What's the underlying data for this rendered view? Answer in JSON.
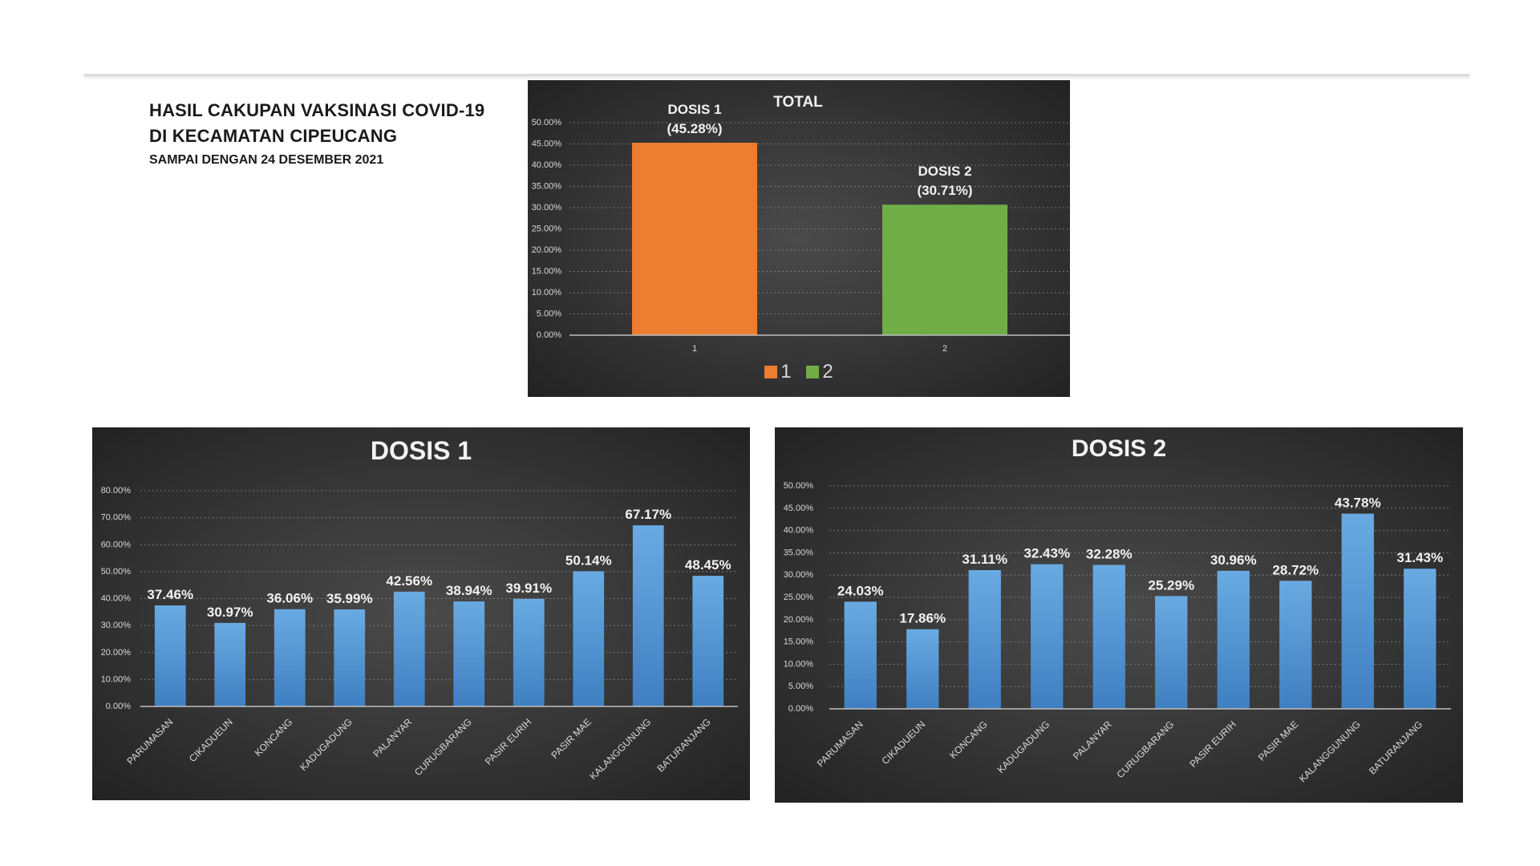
{
  "header": {
    "line1": "HASIL CAKUPAN VAKSINASI COVID-19",
    "line2": "DI KECAMATAN CIPEUCANG",
    "line3": "SAMPAI DENGAN 24 DESEMBER 2021"
  },
  "colors": {
    "orange": "#ED7D31",
    "green": "#70AD47",
    "blue": "#5B9BD5"
  },
  "chart_data": [
    {
      "id": "total",
      "type": "bar",
      "title": "TOTAL",
      "categories": [
        "1",
        "2"
      ],
      "values": [
        45.28,
        30.71
      ],
      "value_labels": [
        [
          "DOSIS 1",
          "(45.28%)"
        ],
        [
          "DOSIS 2",
          "(30.71%)"
        ]
      ],
      "bar_colors": [
        "#ED7D31",
        "#70AD47"
      ],
      "ylim": [
        0,
        50
      ],
      "yticks": [
        "0.00%",
        "5.00%",
        "10.00%",
        "15.00%",
        "20.00%",
        "25.00%",
        "30.00%",
        "35.00%",
        "40.00%",
        "45.00%",
        "50.00%"
      ],
      "legend": [
        {
          "label": "1",
          "color": "#ED7D31"
        },
        {
          "label": "2",
          "color": "#70AD47"
        }
      ],
      "xlabel": "",
      "ylabel": ""
    },
    {
      "id": "dosis1",
      "type": "bar",
      "title": "DOSIS 1",
      "categories": [
        "PARUMASAN",
        "CIKADUEUN",
        "KONCANG",
        "KADUGADUNG",
        "PALANYAR",
        "CURUGBARANG",
        "PASIR EURIH",
        "PASIR MAE",
        "KALANGGUNUNG",
        "BATURANJANG"
      ],
      "values": [
        37.46,
        30.97,
        36.06,
        35.99,
        42.56,
        38.94,
        39.91,
        50.14,
        67.17,
        48.45
      ],
      "value_labels": [
        "37.46%",
        "30.97%",
        "36.06%",
        "35.99%",
        "42.56%",
        "38.94%",
        "39.91%",
        "50.14%",
        "67.17%",
        "48.45%"
      ],
      "ylim": [
        0,
        80
      ],
      "yticks": [
        "0.00%",
        "10.00%",
        "20.00%",
        "30.00%",
        "40.00%",
        "50.00%",
        "60.00%",
        "70.00%",
        "80.00%"
      ],
      "xlabel": "",
      "ylabel": ""
    },
    {
      "id": "dosis2",
      "type": "bar",
      "title": "DOSIS 2",
      "categories": [
        "PARUMASAN",
        "CIKADUEUN",
        "KONCANG",
        "KADUGADUNG",
        "PALANYAR",
        "CURUGBARANG",
        "PASIR EURIH",
        "PASIR MAE",
        "KALANGGUNUNG",
        "BATURANJANG"
      ],
      "values": [
        24.03,
        17.86,
        31.11,
        32.43,
        32.28,
        25.29,
        30.96,
        28.72,
        43.78,
        31.43
      ],
      "value_labels": [
        "24.03%",
        "17.86%",
        "31.11%",
        "32.43%",
        "32.28%",
        "25.29%",
        "30.96%",
        "28.72%",
        "43.78%",
        "31.43%"
      ],
      "ylim": [
        0,
        50
      ],
      "yticks": [
        "0.00%",
        "5.00%",
        "10.00%",
        "15.00%",
        "20.00%",
        "25.00%",
        "30.00%",
        "35.00%",
        "40.00%",
        "45.00%",
        "50.00%"
      ],
      "xlabel": "",
      "ylabel": ""
    }
  ]
}
